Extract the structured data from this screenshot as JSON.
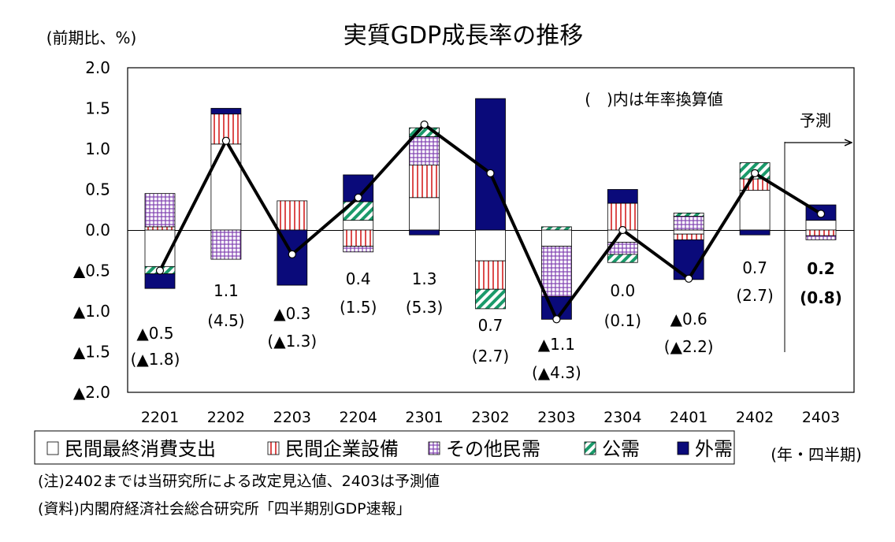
{
  "header": {
    "title": "実質GDP成長率の推移",
    "unit": "(前期比、%)",
    "annual_note": "(　)内は年率換算値",
    "forecast_label": "予測",
    "period_label": "(年・四半期)"
  },
  "legend": [
    {
      "label": "民間最終消費支出",
      "pattern": "white"
    },
    {
      "label": "民間企業設備",
      "pattern": "stripe-red"
    },
    {
      "label": "その他民需",
      "pattern": "grid-purple"
    },
    {
      "label": "公需",
      "pattern": "diag-green"
    },
    {
      "label": "外需",
      "pattern": "navy"
    }
  ],
  "notes": {
    "note1": "(注)2402までは当研究所による改定見込値、2403は予測値",
    "note2": "(資料)内閣府経済社会総合研究所「四半期別GDP速報」"
  },
  "colors": {
    "navy": "#0a0a7a",
    "red": "#d42020",
    "purple": "#8040b0",
    "green": "#1a9a6a",
    "line": "#000000"
  },
  "chart_data": {
    "type": "bar",
    "stacked": true,
    "categories": [
      "2201",
      "2202",
      "2203",
      "2204",
      "2301",
      "2302",
      "2303",
      "2304",
      "2401",
      "2402",
      "2403"
    ],
    "ylim": [
      -2.0,
      2.0
    ],
    "yticks": [
      {
        "v": 2.0,
        "t": "2.0"
      },
      {
        "v": 1.5,
        "t": "1.5"
      },
      {
        "v": 1.0,
        "t": "1.0"
      },
      {
        "v": 0.5,
        "t": "0.5"
      },
      {
        "v": 0.0,
        "t": "0.0"
      },
      {
        "v": -0.5,
        "t": "▲0.5"
      },
      {
        "v": -1.0,
        "t": "▲1.0"
      },
      {
        "v": -1.5,
        "t": "▲1.5"
      },
      {
        "v": -2.0,
        "t": "▲2.0"
      }
    ],
    "series": [
      {
        "name": "民間最終消費支出",
        "pattern": "white",
        "values": [
          -0.45,
          1.06,
          0.0,
          0.12,
          0.4,
          -0.38,
          -0.2,
          -0.15,
          -0.05,
          0.49,
          0.12
        ]
      },
      {
        "name": "民間企業設備",
        "pattern": "stripe-red",
        "values": [
          0.04,
          0.37,
          0.36,
          -0.2,
          0.4,
          -0.35,
          0.0,
          0.33,
          -0.07,
          0.14,
          -0.07
        ]
      },
      {
        "name": "その他民需",
        "pattern": "grid-purple",
        "values": [
          0.41,
          -0.36,
          0.0,
          -0.07,
          0.35,
          0.0,
          -0.62,
          -0.15,
          0.17,
          0.0,
          -0.05
        ]
      },
      {
        "name": "公需",
        "pattern": "diag-green",
        "values": [
          -0.09,
          0.0,
          0.0,
          0.23,
          0.11,
          -0.24,
          0.04,
          -0.1,
          0.04,
          0.2,
          0.0
        ]
      },
      {
        "name": "外需",
        "pattern": "navy",
        "values": [
          -0.18,
          0.07,
          -0.68,
          0.33,
          -0.06,
          1.62,
          -0.28,
          0.17,
          -0.49,
          -0.06,
          0.19
        ]
      }
    ],
    "line": {
      "values": [
        -0.5,
        1.1,
        -0.3,
        0.4,
        1.3,
        0.7,
        -1.1,
        0.0,
        -0.6,
        0.7,
        0.2
      ]
    },
    "labels": [
      {
        "v": "▲0.5",
        "a": "(▲1.8)",
        "bold": false
      },
      {
        "v": "1.1",
        "a": "(4.5)",
        "bold": false
      },
      {
        "v": "▲0.3",
        "a": "(▲1.3)",
        "bold": false
      },
      {
        "v": "0.4",
        "a": "(1.5)",
        "bold": false
      },
      {
        "v": "1.3",
        "a": "(5.3)",
        "bold": false
      },
      {
        "v": "0.7",
        "a": "(2.7)",
        "bold": false
      },
      {
        "v": "▲1.1",
        "a": "(▲4.3)",
        "bold": false
      },
      {
        "v": "0.0",
        "a": "(0.1)",
        "bold": false
      },
      {
        "v": "▲0.6",
        "a": "(▲2.2)",
        "bold": false
      },
      {
        "v": "0.7",
        "a": "(2.7)",
        "bold": false
      },
      {
        "v": "0.2",
        "a": "(0.8)",
        "bold": true
      }
    ]
  }
}
